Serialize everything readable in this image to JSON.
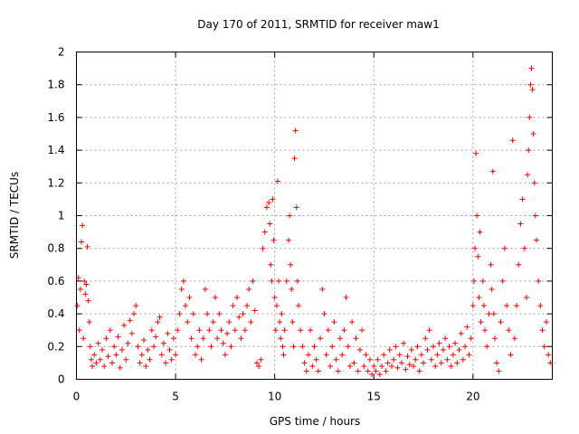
{
  "chart_data": {
    "type": "scatter",
    "title": "Day 170 of 2011, SRMTID for receiver maw1",
    "xlabel": "GPS time / hours",
    "ylabel": "SRMTID / TECUs",
    "xlim": [
      0,
      24
    ],
    "ylim": [
      0,
      2
    ],
    "xticks": [
      0,
      5,
      10,
      15,
      20
    ],
    "yticks": [
      0,
      0.2,
      0.4,
      0.6,
      0.8,
      1,
      1.2,
      1.4,
      1.6,
      1.8,
      2
    ],
    "xtick_labels": [
      "0",
      "5",
      "10",
      "15",
      "20"
    ],
    "ytick_labels": [
      "0",
      "0.2",
      "0.4",
      "0.6",
      "0.8",
      "1",
      "1.2",
      "1.4",
      "1.6",
      "1.8",
      "2"
    ],
    "grid": true,
    "marker": "+",
    "color": "#ff0000",
    "points": [
      [
        0.05,
        0.45
      ],
      [
        0.1,
        0.62
      ],
      [
        0.15,
        0.3
      ],
      [
        0.2,
        0.55
      ],
      [
        0.25,
        0.84
      ],
      [
        0.3,
        0.94
      ],
      [
        0.35,
        0.25
      ],
      [
        0.4,
        0.6
      ],
      [
        0.45,
        0.52
      ],
      [
        0.5,
        0.58
      ],
      [
        0.55,
        0.81
      ],
      [
        0.6,
        0.48
      ],
      [
        0.65,
        0.35
      ],
      [
        0.7,
        0.2
      ],
      [
        0.75,
        0.12
      ],
      [
        0.8,
        0.08
      ],
      [
        0.9,
        0.15
      ],
      [
        1.0,
        0.1
      ],
      [
        1.1,
        0.22
      ],
      [
        1.2,
        0.12
      ],
      [
        1.3,
        0.18
      ],
      [
        1.4,
        0.08
      ],
      [
        1.5,
        0.25
      ],
      [
        1.6,
        0.14
      ],
      [
        1.7,
        0.3
      ],
      [
        1.8,
        0.1
      ],
      [
        1.9,
        0.2
      ],
      [
        2.0,
        0.15
      ],
      [
        2.1,
        0.26
      ],
      [
        2.2,
        0.07
      ],
      [
        2.3,
        0.18
      ],
      [
        2.4,
        0.33
      ],
      [
        2.5,
        0.12
      ],
      [
        2.6,
        0.22
      ],
      [
        2.7,
        0.36
      ],
      [
        2.8,
        0.28
      ],
      [
        2.9,
        0.4
      ],
      [
        3.0,
        0.45
      ],
      [
        3.1,
        0.2
      ],
      [
        3.2,
        0.1
      ],
      [
        3.3,
        0.15
      ],
      [
        3.4,
        0.24
      ],
      [
        3.5,
        0.08
      ],
      [
        3.6,
        0.18
      ],
      [
        3.7,
        0.12
      ],
      [
        3.8,
        0.3
      ],
      [
        3.9,
        0.2
      ],
      [
        4.0,
        0.26
      ],
      [
        4.1,
        0.35
      ],
      [
        4.2,
        0.38
      ],
      [
        4.3,
        0.15
      ],
      [
        4.4,
        0.22
      ],
      [
        4.5,
        0.1
      ],
      [
        4.6,
        0.28
      ],
      [
        4.7,
        0.18
      ],
      [
        4.8,
        0.12
      ],
      [
        4.9,
        0.25
      ],
      [
        5.0,
        0.15
      ],
      [
        5.1,
        0.3
      ],
      [
        5.2,
        0.4
      ],
      [
        5.3,
        0.55
      ],
      [
        5.4,
        0.6
      ],
      [
        5.5,
        0.45
      ],
      [
        5.6,
        0.35
      ],
      [
        5.7,
        0.5
      ],
      [
        5.8,
        0.25
      ],
      [
        5.9,
        0.4
      ],
      [
        6.0,
        0.15
      ],
      [
        6.1,
        0.2
      ],
      [
        6.2,
        0.3
      ],
      [
        6.3,
        0.12
      ],
      [
        6.4,
        0.25
      ],
      [
        6.5,
        0.55
      ],
      [
        6.6,
        0.4
      ],
      [
        6.7,
        0.3
      ],
      [
        6.8,
        0.2
      ],
      [
        6.9,
        0.35
      ],
      [
        7.0,
        0.5
      ],
      [
        7.1,
        0.25
      ],
      [
        7.2,
        0.4
      ],
      [
        7.3,
        0.3
      ],
      [
        7.4,
        0.22
      ],
      [
        7.5,
        0.15
      ],
      [
        7.6,
        0.28
      ],
      [
        7.7,
        0.35
      ],
      [
        7.8,
        0.2
      ],
      [
        7.9,
        0.45
      ],
      [
        8.0,
        0.3
      ],
      [
        8.1,
        0.5
      ],
      [
        8.2,
        0.38
      ],
      [
        8.3,
        0.25
      ],
      [
        8.4,
        0.4
      ],
      [
        8.5,
        0.3
      ],
      [
        8.6,
        0.45
      ],
      [
        8.7,
        0.55
      ],
      [
        8.8,
        0.35
      ],
      [
        8.9,
        0.6
      ],
      [
        9.0,
        0.42
      ],
      [
        9.1,
        0.1
      ],
      [
        9.2,
        0.08
      ],
      [
        9.3,
        0.12
      ],
      [
        9.4,
        0.8
      ],
      [
        9.5,
        0.9
      ],
      [
        9.6,
        1.05
      ],
      [
        9.7,
        1.08
      ],
      [
        9.75,
        0.95
      ],
      [
        9.8,
        0.7
      ],
      [
        9.85,
        0.6
      ],
      [
        9.9,
        1.1
      ],
      [
        9.95,
        0.85
      ],
      [
        10.0,
        0.5
      ],
      [
        10.05,
        0.3
      ],
      [
        10.1,
        0.45
      ],
      [
        10.15,
        1.21
      ],
      [
        10.2,
        0.6
      ],
      [
        10.25,
        0.35
      ],
      [
        10.3,
        0.25
      ],
      [
        10.35,
        0.4
      ],
      [
        10.4,
        0.2
      ],
      [
        10.45,
        0.15
      ],
      [
        10.5,
        0.3
      ],
      [
        10.6,
        0.6
      ],
      [
        10.7,
        0.85
      ],
      [
        10.75,
        1.0
      ],
      [
        10.8,
        0.7
      ],
      [
        10.85,
        0.55
      ],
      [
        10.9,
        0.35
      ],
      [
        10.95,
        0.2
      ],
      [
        11.0,
        1.35
      ],
      [
        11.05,
        1.52
      ],
      [
        11.1,
        1.05
      ],
      [
        11.15,
        0.6
      ],
      [
        11.2,
        0.45
      ],
      [
        11.3,
        0.3
      ],
      [
        11.4,
        0.2
      ],
      [
        11.5,
        0.1
      ],
      [
        11.6,
        0.05
      ],
      [
        11.7,
        0.15
      ],
      [
        11.8,
        0.3
      ],
      [
        11.9,
        0.08
      ],
      [
        12.0,
        0.2
      ],
      [
        12.1,
        0.12
      ],
      [
        12.2,
        0.05
      ],
      [
        12.3,
        0.25
      ],
      [
        12.4,
        0.55
      ],
      [
        12.5,
        0.4
      ],
      [
        12.6,
        0.15
      ],
      [
        12.7,
        0.3
      ],
      [
        12.8,
        0.08
      ],
      [
        12.9,
        0.2
      ],
      [
        13.0,
        0.35
      ],
      [
        13.1,
        0.12
      ],
      [
        13.2,
        0.05
      ],
      [
        13.3,
        0.25
      ],
      [
        13.4,
        0.15
      ],
      [
        13.5,
        0.3
      ],
      [
        13.6,
        0.5
      ],
      [
        13.7,
        0.2
      ],
      [
        13.8,
        0.08
      ],
      [
        13.9,
        0.35
      ],
      [
        14.0,
        0.1
      ],
      [
        14.1,
        0.25
      ],
      [
        14.2,
        0.05
      ],
      [
        14.3,
        0.18
      ],
      [
        14.4,
        0.3
      ],
      [
        14.5,
        0.08
      ],
      [
        14.6,
        0.15
      ],
      [
        14.7,
        0.05
      ],
      [
        14.8,
        0.12
      ],
      [
        14.9,
        0.03
      ],
      [
        15.0,
        0.08
      ],
      [
        15.1,
        0.05
      ],
      [
        15.2,
        0.12
      ],
      [
        15.3,
        0.03
      ],
      [
        15.4,
        0.08
      ],
      [
        15.5,
        0.15
      ],
      [
        15.6,
        0.05
      ],
      [
        15.7,
        0.1
      ],
      [
        15.8,
        0.18
      ],
      [
        15.9,
        0.08
      ],
      [
        16.0,
        0.12
      ],
      [
        16.1,
        0.2
      ],
      [
        16.2,
        0.07
      ],
      [
        16.3,
        0.15
      ],
      [
        16.4,
        0.1
      ],
      [
        16.5,
        0.22
      ],
      [
        16.6,
        0.06
      ],
      [
        16.7,
        0.14
      ],
      [
        16.8,
        0.09
      ],
      [
        16.9,
        0.18
      ],
      [
        17.0,
        0.08
      ],
      [
        17.1,
        0.12
      ],
      [
        17.2,
        0.2
      ],
      [
        17.3,
        0.05
      ],
      [
        17.4,
        0.15
      ],
      [
        17.5,
        0.1
      ],
      [
        17.6,
        0.25
      ],
      [
        17.7,
        0.18
      ],
      [
        17.8,
        0.3
      ],
      [
        17.9,
        0.12
      ],
      [
        18.0,
        0.2
      ],
      [
        18.1,
        0.08
      ],
      [
        18.2,
        0.15
      ],
      [
        18.3,
        0.22
      ],
      [
        18.4,
        0.1
      ],
      [
        18.5,
        0.18
      ],
      [
        18.6,
        0.25
      ],
      [
        18.7,
        0.12
      ],
      [
        18.8,
        0.2
      ],
      [
        18.9,
        0.08
      ],
      [
        19.0,
        0.15
      ],
      [
        19.1,
        0.22
      ],
      [
        19.2,
        0.1
      ],
      [
        19.3,
        0.18
      ],
      [
        19.4,
        0.28
      ],
      [
        19.5,
        0.12
      ],
      [
        19.6,
        0.2
      ],
      [
        19.7,
        0.32
      ],
      [
        19.8,
        0.15
      ],
      [
        19.9,
        0.25
      ],
      [
        20.0,
        0.45
      ],
      [
        20.05,
        0.6
      ],
      [
        20.1,
        0.8
      ],
      [
        20.15,
        1.38
      ],
      [
        20.2,
        1.0
      ],
      [
        20.25,
        0.75
      ],
      [
        20.3,
        0.5
      ],
      [
        20.35,
        0.9
      ],
      [
        20.4,
        0.35
      ],
      [
        20.5,
        0.6
      ],
      [
        20.55,
        0.45
      ],
      [
        20.6,
        0.3
      ],
      [
        20.7,
        0.2
      ],
      [
        20.8,
        0.4
      ],
      [
        20.9,
        0.7
      ],
      [
        20.95,
        0.55
      ],
      [
        21.0,
        1.27
      ],
      [
        21.05,
        0.4
      ],
      [
        21.1,
        0.25
      ],
      [
        21.2,
        0.1
      ],
      [
        21.3,
        0.05
      ],
      [
        21.4,
        0.35
      ],
      [
        21.5,
        0.6
      ],
      [
        21.6,
        0.8
      ],
      [
        21.7,
        0.45
      ],
      [
        21.8,
        0.3
      ],
      [
        21.9,
        0.15
      ],
      [
        22.0,
        1.46
      ],
      [
        22.1,
        0.25
      ],
      [
        22.2,
        0.45
      ],
      [
        22.3,
        0.7
      ],
      [
        22.4,
        0.95
      ],
      [
        22.5,
        1.1
      ],
      [
        22.6,
        0.8
      ],
      [
        22.7,
        0.5
      ],
      [
        22.75,
        1.25
      ],
      [
        22.8,
        1.4
      ],
      [
        22.85,
        1.6
      ],
      [
        22.9,
        1.8
      ],
      [
        22.95,
        1.9
      ],
      [
        23.0,
        1.77
      ],
      [
        23.05,
        1.5
      ],
      [
        23.1,
        1.2
      ],
      [
        23.15,
        1.0
      ],
      [
        23.2,
        0.85
      ],
      [
        23.3,
        0.6
      ],
      [
        23.4,
        0.45
      ],
      [
        23.5,
        0.3
      ],
      [
        23.6,
        0.2
      ],
      [
        23.7,
        0.35
      ],
      [
        23.8,
        0.15
      ],
      [
        23.9,
        0.1
      ]
    ]
  }
}
